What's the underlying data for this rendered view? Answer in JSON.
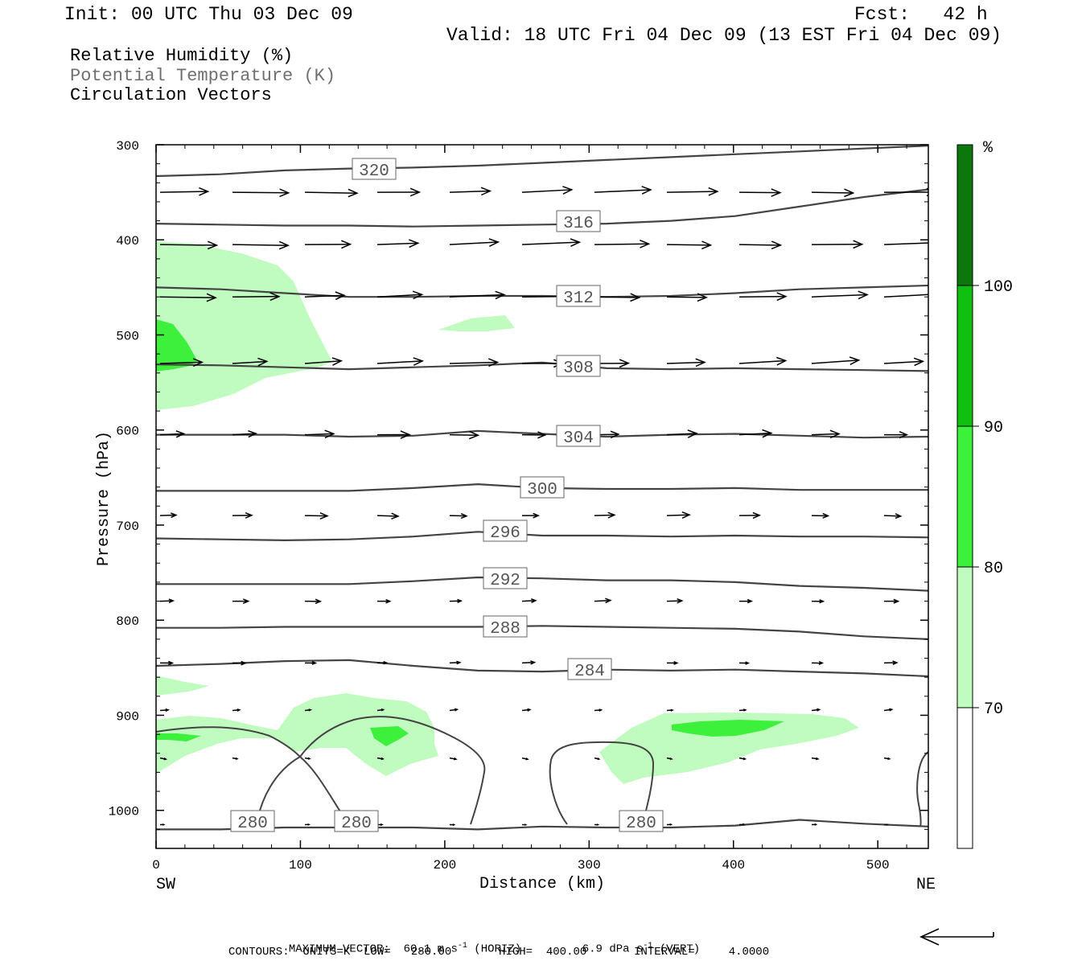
{
  "header": {
    "init": "Init: 00 UTC Thu 03 Dec 09",
    "fcst": "Fcst:   42 h",
    "valid": "Valid: 18 UTC Fri 04 Dec 09 (13 EST Fri 04 Dec 09)"
  },
  "legend": {
    "rh": "Relative Humidity (%)",
    "theta": "Potential Temperature (K)",
    "vectors": "Circulation Vectors"
  },
  "footer": {
    "max_vector_label": "MAXIMUM VECTOR:",
    "max_vector_horiz": "60.1 m s",
    "horiz_tag": "(HORIZ)",
    "max_vector_vert": "6.9 dPa s",
    "vert_tag": "(VERT)",
    "exp": "-1",
    "contours": "CONTOURS:  UNITS=K  LOW=   280.00       HIGH=  400.00       INTERVAL=     4.0000"
  },
  "colors": {
    "rh_70": "#c0fcc0",
    "rh_80": "#3cf03c",
    "rh_90": "#10c010",
    "rh_100": "#0c780c",
    "contour": "#444444",
    "frame": "#000000"
  },
  "chart_data": {
    "type": "cross-section",
    "xlabel": "Distance (km)",
    "ylabel": "Pressure (hPa)",
    "xlim": [
      0,
      535
    ],
    "ylim": [
      1040,
      300
    ],
    "x_ticks": [
      "0",
      "100",
      "200",
      "300",
      "400",
      "500"
    ],
    "y_ticks": [
      "300",
      "400",
      "500",
      "600",
      "700",
      "800",
      "900",
      "1000"
    ],
    "endpoints": {
      "left": "SW",
      "right": "NE"
    },
    "colorbar": {
      "unit": "%",
      "levels": [
        "70",
        "80",
        "90",
        "100"
      ],
      "colors": [
        "#c0fcc0",
        "#3cf03c",
        "#10c010",
        "#0c780c"
      ]
    },
    "theta_contours": [
      {
        "label": "320",
        "p": [
          333,
          331,
          327,
          325,
          324,
          322,
          319,
          316,
          313,
          310,
          307,
          304,
          301
        ]
      },
      {
        "label": "316",
        "p": [
          383,
          384,
          385,
          385,
          386,
          385,
          384,
          383,
          380,
          375,
          365,
          355,
          347
        ]
      },
      {
        "label": "312",
        "p": [
          450,
          452,
          456,
          460,
          460,
          459,
          459,
          460,
          459,
          456,
          452,
          450,
          448
        ]
      },
      {
        "label": "308",
        "p": [
          531,
          532,
          534,
          536,
          534,
          532,
          529,
          535,
          536,
          535,
          536,
          537,
          538
        ]
      },
      {
        "label": "304",
        "p": [
          605,
          605,
          605,
          607,
          606,
          601,
          604,
          607,
          605,
          604,
          606,
          608,
          607
        ]
      },
      {
        "label": "300",
        "p": [
          664,
          664,
          664,
          664,
          661,
          657,
          661,
          662,
          662,
          661,
          663,
          663,
          663
        ]
      },
      {
        "label": "296",
        "p": [
          714,
          715,
          716,
          715,
          712,
          707,
          711,
          711,
          712,
          711,
          712,
          712,
          713
        ]
      },
      {
        "label": "292",
        "p": [
          762,
          762,
          762,
          762,
          759,
          755,
          756,
          758,
          758,
          760,
          764,
          766,
          769
        ]
      },
      {
        "label": "288",
        "p": [
          808,
          808,
          807,
          807,
          807,
          807,
          806,
          807,
          808,
          809,
          812,
          817,
          820
        ]
      },
      {
        "label": "284",
        "p": [
          848,
          846,
          843,
          842,
          848,
          853,
          854,
          852,
          853,
          852,
          854,
          856,
          859
        ]
      },
      {
        "label": "280",
        "p": [
          1020,
          1020,
          1018,
          1018,
          1018,
          1020,
          1017,
          1018,
          1018,
          1016,
          1010,
          1014,
          1017
        ]
      }
    ],
    "contour_labels": [
      "320",
      "316",
      "312",
      "308",
      "304",
      "300",
      "296",
      "292",
      "288",
      "284",
      "280",
      "280",
      "280"
    ],
    "vector_rows_hpa": [
      350,
      405,
      460,
      530,
      605,
      690,
      780,
      845,
      895,
      945,
      1015
    ]
  }
}
